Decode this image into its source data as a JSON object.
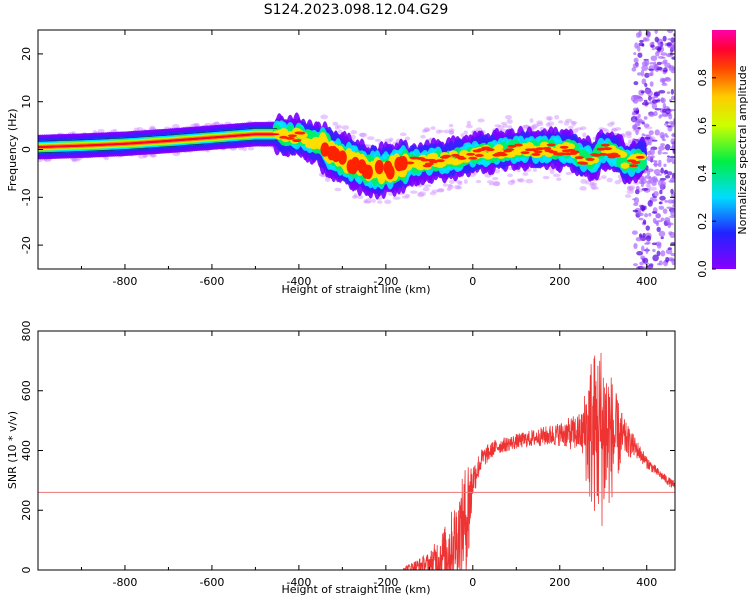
{
  "title": "S124.2023.098.12.04.G29",
  "colors": {
    "snr_line": "#ee3333",
    "threshold_line": "#ee7777",
    "axes": "#000000",
    "ridge_core": "#ff2200"
  },
  "chart_data": [
    {
      "type": "heatmap",
      "name": "spectrogram",
      "xlabel": "Height of straight line (km)",
      "ylabel": "Frequency (Hz)",
      "xlim": [
        -1000,
        465
      ],
      "ylim": [
        -25,
        25
      ],
      "xticks": [
        -800,
        -600,
        -400,
        -200,
        0,
        200,
        400
      ],
      "yticks": [
        -20,
        -10,
        0,
        10,
        20
      ],
      "colorbar": {
        "label": "Normalized spectral amplitude",
        "range": [
          0,
          1
        ],
        "ticks": [
          "0.0",
          "0.2",
          "0.4",
          "0.6",
          "0.8"
        ],
        "colormap": "hsv-like (purple → blue → cyan → green → yellow → orange → red → magenta)"
      },
      "ridge": {
        "x": [
          -1000,
          -900,
          -800,
          -700,
          -600,
          -500,
          -450,
          -400,
          -350,
          -300,
          -250,
          -200,
          -150,
          -100,
          -50,
          0,
          50,
          100,
          150,
          200,
          230,
          250,
          280,
          300,
          330,
          360,
          380
        ],
        "y": [
          0.5,
          0.8,
          1.2,
          1.8,
          2.5,
          3.2,
          3.2,
          2.8,
          1.0,
          -2.0,
          -4.0,
          -4.5,
          -3.0,
          -2.5,
          -2.0,
          -1.0,
          -0.5,
          0,
          0,
          0,
          0,
          -2.0,
          -2.0,
          0,
          -1.0,
          -3.0,
          -2.0
        ]
      }
    },
    {
      "type": "line",
      "name": "snr",
      "xlabel": "Height of straight line (km)",
      "ylabel": "SNR (10 * v/v)",
      "xlim": [
        -1000,
        465
      ],
      "ylim": [
        0,
        800
      ],
      "xticks": [
        -800,
        -600,
        -400,
        -200,
        0,
        200,
        400
      ],
      "yticks": [
        0,
        200,
        400,
        600,
        800
      ],
      "threshold": 260,
      "envelope": {
        "x": [
          -160,
          -100,
          -60,
          -30,
          -10,
          0,
          20,
          50,
          100,
          150,
          200,
          250,
          270,
          300,
          330,
          350,
          380,
          400,
          430,
          465
        ],
        "base": [
          5,
          20,
          60,
          120,
          200,
          300,
          370,
          410,
          430,
          445,
          455,
          460,
          465,
          455,
          440,
          440,
          400,
          360,
          320,
          280
        ],
        "spread": [
          5,
          40,
          100,
          150,
          200,
          60,
          35,
          25,
          25,
          30,
          40,
          70,
          260,
          320,
          150,
          60,
          30,
          20,
          15,
          15
        ]
      }
    }
  ]
}
